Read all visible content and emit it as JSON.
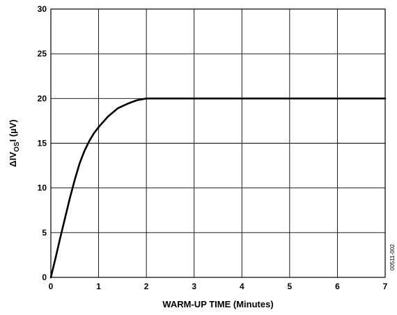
{
  "chart_data": {
    "type": "line",
    "title": "",
    "xlabel": "WARM-UP TIME (Minutes)",
    "ylabel": {
      "prefix": "ΔIV",
      "subscript": "OS",
      "suffix": "I (µV)"
    },
    "xlim": [
      0,
      7
    ],
    "ylim": [
      0,
      30
    ],
    "x_ticks": [
      0,
      1,
      2,
      3,
      4,
      5,
      6,
      7
    ],
    "y_ticks": [
      0,
      5,
      10,
      15,
      20,
      25,
      30
    ],
    "grid": true,
    "series": [
      {
        "values": [
          [
            0,
            0
          ],
          [
            0.1,
            2.2
          ],
          [
            0.2,
            4.5
          ],
          [
            0.3,
            6.7
          ],
          [
            0.4,
            8.9
          ],
          [
            0.5,
            10.9
          ],
          [
            0.6,
            12.7
          ],
          [
            0.7,
            14.1
          ],
          [
            0.8,
            15.2
          ],
          [
            0.9,
            16.1
          ],
          [
            1.0,
            16.8
          ],
          [
            1.2,
            18.0
          ],
          [
            1.4,
            18.9
          ],
          [
            1.6,
            19.4
          ],
          [
            1.8,
            19.8
          ],
          [
            2.0,
            20.0
          ],
          [
            3,
            20
          ],
          [
            4,
            20
          ],
          [
            5,
            20
          ],
          [
            6,
            20
          ],
          [
            7,
            20
          ]
        ],
        "color": "#000000"
      }
    ]
  },
  "figure_id": "00511-002"
}
